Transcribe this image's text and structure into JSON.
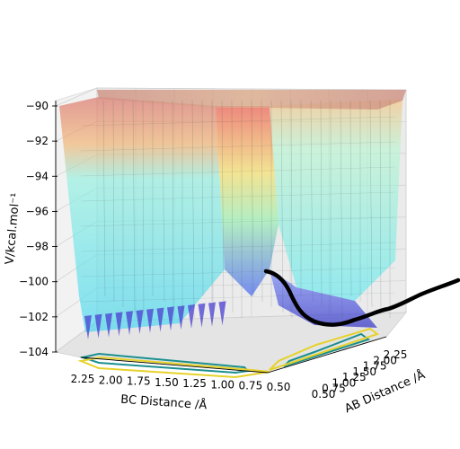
{
  "chart_data": {
    "type": "surface3d",
    "title": "",
    "zlabel": "V/kcal.mol⁻¹",
    "xlabel": "AB Distance /Å",
    "ylabel": "BC Distance /Å",
    "zlim": [
      -104,
      -90
    ],
    "z_ticks": [
      "−90",
      "−92",
      "−94",
      "−96",
      "−98",
      "−100",
      "−102",
      "−104"
    ],
    "ab_ticks": [
      "0.50",
      "0.75",
      "1.00",
      "1.25",
      "1.50",
      "1.75",
      "2.00",
      "2.25"
    ],
    "bc_ticks": [
      "2.25",
      "2.00",
      "1.75",
      "1.50",
      "1.25",
      "1.00",
      "0.75",
      "0.50"
    ],
    "grid": true,
    "colormap": "jet",
    "surface_alpha": 0.45,
    "contour_colors": [
      "#1b8f8f",
      "#e6d22a"
    ],
    "trajectory": {
      "color": "#000000",
      "ab": [
        2.3,
        2.1,
        1.9,
        1.7,
        1.5,
        1.3,
        1.1,
        0.95,
        0.85,
        0.8,
        0.76,
        0.74
      ],
      "bc": [
        0.74,
        0.75,
        0.76,
        0.78,
        0.8,
        0.84,
        0.9,
        1.0,
        1.1,
        1.2,
        1.3,
        1.4
      ],
      "v": [
        -100.3,
        -100.6,
        -100.9,
        -101.4,
        -101.9,
        -102.4,
        -102.9,
        -102.7,
        -102.0,
        -101.1,
        -100.5,
        -100.2
      ]
    }
  }
}
